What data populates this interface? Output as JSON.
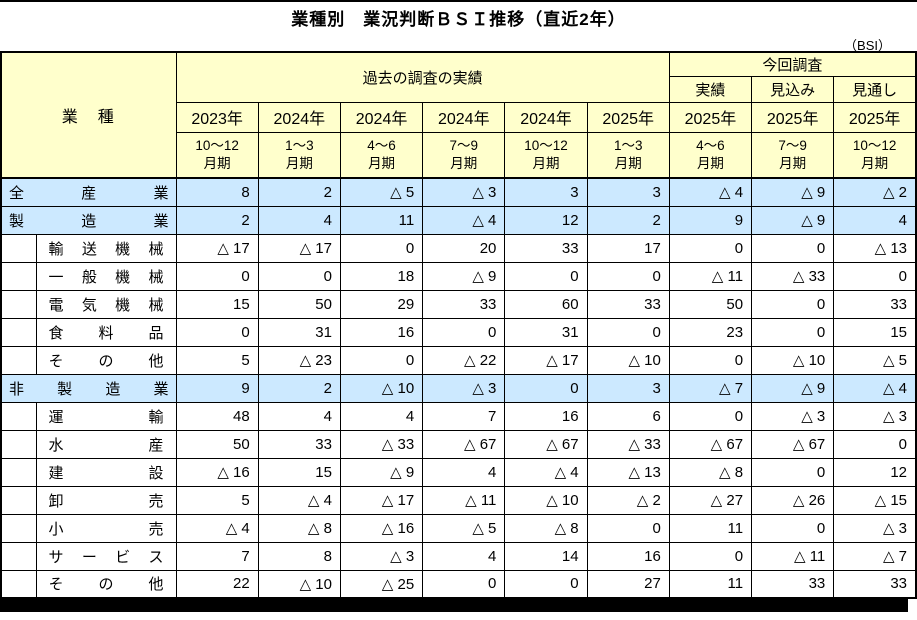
{
  "title": "業種別　業況判断ＢＳＩ推移（直近2年）",
  "unit_label": "（BSI）",
  "colors": {
    "header_bg": "#ffffcc",
    "group_row_bg": "#cce9ff",
    "border": "#000000",
    "bottom_bar": "#000000"
  },
  "table": {
    "industry_header": "業　種",
    "past_surveys_header": "過去の調査の実績",
    "current_survey_header": "今回調査",
    "current_subheaders": [
      "実績",
      "見込み",
      "見通し"
    ],
    "columns": [
      {
        "year": "2023年",
        "period_line1": "10～12",
        "period_line2": "月期"
      },
      {
        "year": "2024年",
        "period_line1": "1～3",
        "period_line2": "月期"
      },
      {
        "year": "2024年",
        "period_line1": "4～6",
        "period_line2": "月期"
      },
      {
        "year": "2024年",
        "period_line1": "7～9",
        "period_line2": "月期"
      },
      {
        "year": "2024年",
        "period_line1": "10～12",
        "period_line2": "月期"
      },
      {
        "year": "2025年",
        "period_line1": "1～3",
        "period_line2": "月期"
      },
      {
        "year": "2025年",
        "period_line1": "4～6",
        "period_line2": "月期"
      },
      {
        "year": "2025年",
        "period_line1": "7～9",
        "period_line2": "月期"
      },
      {
        "year": "2025年",
        "period_line1": "10～12",
        "period_line2": "月期"
      }
    ],
    "rows": [
      {
        "type": "group",
        "label": "全産業",
        "values": [
          "8",
          "2",
          "△ 5",
          "△ 3",
          "3",
          "3",
          "△ 4",
          "△ 9",
          "△ 2"
        ]
      },
      {
        "type": "group",
        "label": "製造業",
        "values": [
          "2",
          "4",
          "11",
          "△ 4",
          "12",
          "2",
          "9",
          "△ 9",
          "4"
        ]
      },
      {
        "type": "detail",
        "label": "輸送機械",
        "values": [
          "△ 17",
          "△ 17",
          "0",
          "20",
          "33",
          "17",
          "0",
          "0",
          "△ 13"
        ]
      },
      {
        "type": "detail",
        "label": "一般機械",
        "values": [
          "0",
          "0",
          "18",
          "△ 9",
          "0",
          "0",
          "△ 11",
          "△ 33",
          "0"
        ]
      },
      {
        "type": "detail",
        "label": "電気機械",
        "values": [
          "15",
          "50",
          "29",
          "33",
          "60",
          "33",
          "50",
          "0",
          "33"
        ]
      },
      {
        "type": "detail",
        "label": "食料品",
        "values": [
          "0",
          "31",
          "16",
          "0",
          "31",
          "0",
          "23",
          "0",
          "15"
        ]
      },
      {
        "type": "detail",
        "label": "その他",
        "values": [
          "5",
          "△ 23",
          "0",
          "△ 22",
          "△ 17",
          "△ 10",
          "0",
          "△ 10",
          "△ 5"
        ]
      },
      {
        "type": "group",
        "label": "非製造業",
        "values": [
          "9",
          "2",
          "△ 10",
          "△ 3",
          "0",
          "3",
          "△ 7",
          "△ 9",
          "△ 4"
        ]
      },
      {
        "type": "detail",
        "label": "運輸",
        "values": [
          "48",
          "4",
          "4",
          "7",
          "16",
          "6",
          "0",
          "△ 3",
          "△ 3"
        ]
      },
      {
        "type": "detail",
        "label": "水産",
        "values": [
          "50",
          "33",
          "△ 33",
          "△ 67",
          "△ 67",
          "△ 33",
          "△ 67",
          "△ 67",
          "0"
        ]
      },
      {
        "type": "detail",
        "label": "建設",
        "values": [
          "△ 16",
          "15",
          "△ 9",
          "4",
          "△ 4",
          "△ 13",
          "△ 8",
          "0",
          "12"
        ]
      },
      {
        "type": "detail",
        "label": "卸売",
        "values": [
          "5",
          "△ 4",
          "△ 17",
          "△ 11",
          "△ 10",
          "△ 2",
          "△ 27",
          "△ 26",
          "△ 15"
        ]
      },
      {
        "type": "detail",
        "label": "小売",
        "values": [
          "△ 4",
          "△ 8",
          "△ 16",
          "△ 5",
          "△ 8",
          "0",
          "11",
          "0",
          "△ 3"
        ]
      },
      {
        "type": "detail",
        "label": "サービス",
        "values": [
          "7",
          "8",
          "△ 3",
          "4",
          "14",
          "16",
          "0",
          "△ 11",
          "△ 7"
        ]
      },
      {
        "type": "detail",
        "label": "その他",
        "values": [
          "22",
          "△ 10",
          "△ 25",
          "0",
          "0",
          "27",
          "11",
          "33",
          "33"
        ]
      }
    ]
  }
}
